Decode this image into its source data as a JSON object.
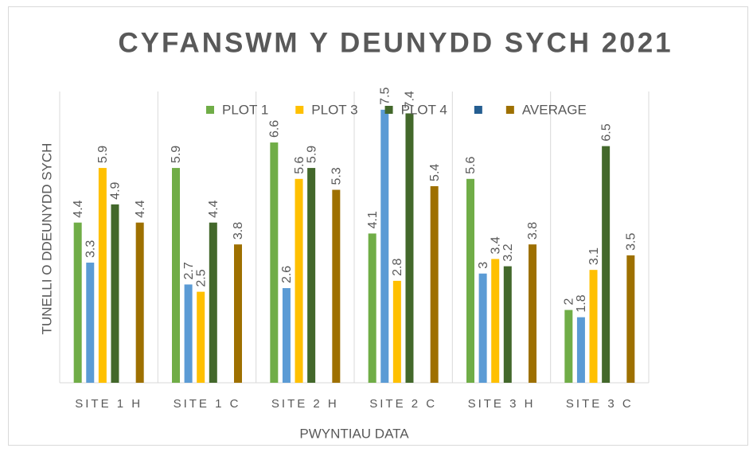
{
  "chart_data": {
    "type": "bar",
    "title": "CYFANSWM Y DEUNYDD SYCH 2021",
    "x_label": "PWYNTIAU DATA",
    "y_label": "TUNELLI O DDEUNYDD SYCH",
    "categories": [
      "SITE 1 H",
      "SITE 1 C",
      "SITE 2 H",
      "SITE 2 C",
      "SITE 3 H",
      "SITE 3 C"
    ],
    "ylim": [
      0,
      8
    ],
    "grid": true,
    "legend_position": "top",
    "series": [
      {
        "name": "PLOT 1",
        "color": "#70ad47",
        "values": [
          4.4,
          5.9,
          6.6,
          4.1,
          5.6,
          2
        ]
      },
      {
        "name": null,
        "color": "#5b9bd5",
        "legend": false,
        "values": [
          3.3,
          2.7,
          2.6,
          7.5,
          3,
          1.8
        ]
      },
      {
        "name": "PLOT 3",
        "color": "#ffc000",
        "values": [
          5.9,
          2.5,
          5.6,
          2.8,
          3.4,
          3.1
        ]
      },
      {
        "name": "PLOT 4",
        "color": "#43682b",
        "values": [
          4.9,
          4.4,
          5.9,
          7.4,
          3.2,
          6.5
        ]
      },
      {
        "name": null,
        "color": "#255e91",
        "values": [
          null,
          null,
          null,
          null,
          null,
          null
        ]
      },
      {
        "name": "AVERAGE",
        "color": "#9e7000",
        "values": [
          4.4,
          3.8,
          5.3,
          5.4,
          3.8,
          3.5
        ]
      }
    ]
  }
}
